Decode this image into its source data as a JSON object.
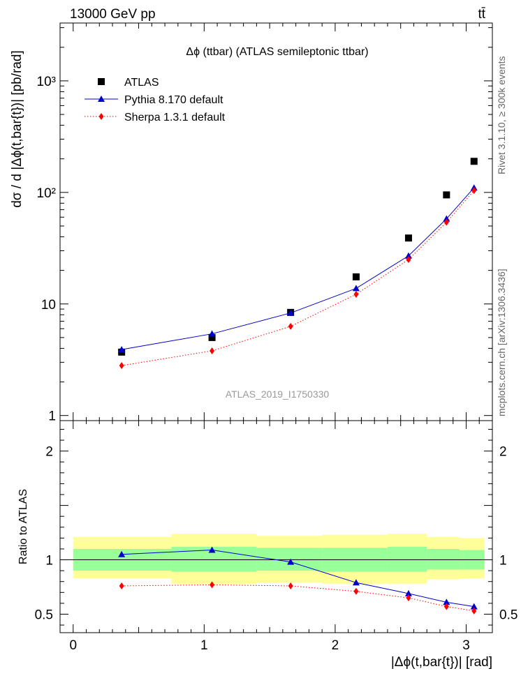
{
  "header": {
    "energy": "13000 GeV pp",
    "process": "tt̄"
  },
  "side_labels": {
    "rivet": "Rivet 3.1.10, ≥ 300k events",
    "site": "mcplots.cern.ch [arXiv:1306.3436]"
  },
  "watermark": "ATLAS_2019_I1750330",
  "colors": {
    "atlas": "#000000",
    "pythia": "#0000cc",
    "sherpa": "#ff0000",
    "band_inner": "#99ff99",
    "band_outer": "#ffff99"
  },
  "chart_data": [
    {
      "type": "scatter",
      "panel": "main",
      "title": "Δϕ (ttbar) (ATLAS semileptonic ttbar)",
      "ylabel": "dσ / d |Δϕ(t,bar{t})| [pb/rad]",
      "yscale": "log",
      "ylim": [
        0.9,
        3300
      ],
      "xlim": [
        -0.1,
        3.2
      ],
      "ytick_labels": [
        "1",
        "10",
        "10²",
        "10³"
      ],
      "ytick_values": [
        1,
        10,
        100,
        1000
      ],
      "legend": [
        "ATLAS",
        "Pythia 8.170 default",
        "Sherpa 1.3.1 default"
      ],
      "legend_position": "top-left",
      "x": [
        0.37,
        1.06,
        1.66,
        2.16,
        2.56,
        2.85,
        3.06
      ],
      "series": [
        {
          "name": "ATLAS",
          "marker": "square",
          "values": [
            3.7,
            5.0,
            8.4,
            17.5,
            39,
            95,
            190
          ]
        },
        {
          "name": "Pythia 8.170 default",
          "marker": "triangle",
          "line": "solid",
          "values": [
            3.9,
            5.4,
            8.3,
            13.8,
            27,
            58,
            110
          ]
        },
        {
          "name": "Sherpa 1.3.1 default",
          "marker": "diamond",
          "line": "dotted",
          "values": [
            2.8,
            3.8,
            6.3,
            12.2,
            25,
            54,
            104
          ]
        }
      ]
    },
    {
      "type": "line",
      "panel": "ratio",
      "ylabel": "Ratio to ATLAS",
      "xlabel": "|Δϕ(t,bar{t})| [rad]",
      "ylim": [
        0.33,
        2.28
      ],
      "xlim": [
        -0.1,
        3.2
      ],
      "xtick_labels": [
        "0",
        "1",
        "2",
        "3"
      ],
      "xtick_values": [
        0,
        1,
        2,
        3
      ],
      "ytick_labels": [
        "0.5",
        "1",
        "2"
      ],
      "ytick_values": [
        0.5,
        1,
        2
      ],
      "bin_edges": [
        0.0,
        0.75,
        1.4,
        1.9,
        2.4,
        2.7,
        2.95,
        3.14
      ],
      "band_inner": [
        [
          0.9,
          1.1
        ],
        [
          0.89,
          1.12
        ],
        [
          0.9,
          1.11
        ],
        [
          0.89,
          1.11
        ],
        [
          0.89,
          1.12
        ],
        [
          0.91,
          1.1
        ],
        [
          0.91,
          1.09
        ]
      ],
      "band_outer": [
        [
          0.83,
          1.21
        ],
        [
          0.78,
          1.24
        ],
        [
          0.79,
          1.22
        ],
        [
          0.78,
          1.23
        ],
        [
          0.78,
          1.24
        ],
        [
          0.82,
          1.21
        ],
        [
          0.83,
          1.2
        ]
      ],
      "x": [
        0.37,
        1.06,
        1.66,
        2.16,
        2.56,
        2.85,
        3.06
      ],
      "series": [
        {
          "name": "Pythia 8.170 default",
          "marker": "triangle",
          "line": "solid",
          "values": [
            1.05,
            1.09,
            0.98,
            0.79,
            0.69,
            0.61,
            0.57
          ]
        },
        {
          "name": "Sherpa 1.3.1 default",
          "marker": "diamond",
          "line": "dotted",
          "values": [
            0.76,
            0.77,
            0.76,
            0.71,
            0.65,
            0.57,
            0.53
          ]
        }
      ]
    }
  ]
}
